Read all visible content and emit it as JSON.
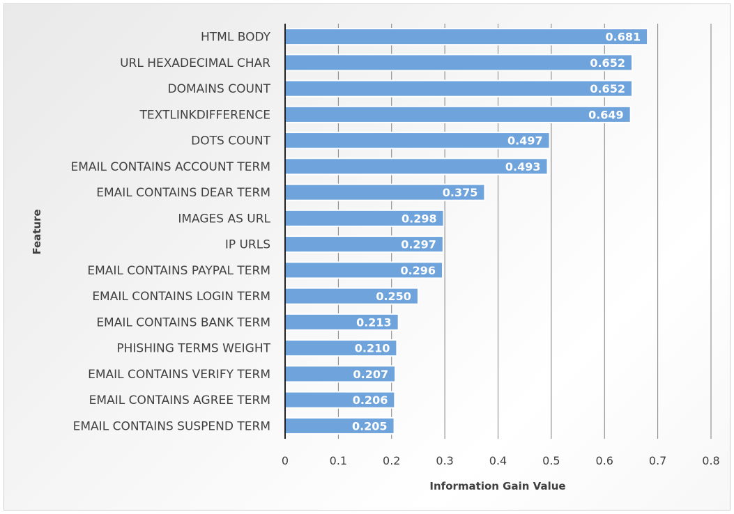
{
  "chart_data": {
    "type": "bar",
    "orientation": "horizontal",
    "categories": [
      "HTML BODY",
      "URL HEXADECIMAL CHAR",
      "DOMAINS COUNT",
      "TEXTLINKDIFFERENCE",
      "DOTS COUNT",
      "EMAIL CONTAINS ACCOUNT TERM",
      "EMAIL CONTAINS DEAR TERM",
      "IMAGES AS URL",
      "IP URLS",
      "EMAIL CONTAINS PAYPAL TERM",
      "EMAIL CONTAINS LOGIN TERM",
      "EMAIL CONTAINS BANK TERM",
      "PHISHING TERMS WEIGHT",
      "EMAIL CONTAINS VERIFY TERM",
      "EMAIL CONTAINS AGREE TERM",
      "EMAIL CONTAINS SUSPEND TERM"
    ],
    "values": [
      0.681,
      0.652,
      0.652,
      0.649,
      0.497,
      0.493,
      0.375,
      0.298,
      0.297,
      0.296,
      0.25,
      0.213,
      0.21,
      0.207,
      0.206,
      0.205
    ],
    "value_labels": [
      "0.681",
      "0.652",
      "0.652",
      "0.649",
      "0.497",
      "0.493",
      "0.375",
      "0.298",
      "0.297",
      "0.296",
      "0.250",
      "0.213",
      "0.210",
      "0.207",
      "0.206",
      "0.205"
    ],
    "xlabel": "Information Gain Value",
    "ylabel": "Feature",
    "xlim": [
      0,
      0.8
    ],
    "xticks": [
      0,
      0.1,
      0.2,
      0.3,
      0.4,
      0.5,
      0.6,
      0.7,
      0.8
    ],
    "xtick_labels": [
      "0",
      "0.1",
      "0.2",
      "0.3",
      "0.4",
      "0.5",
      "0.6",
      "0.7",
      "0.8"
    ],
    "grid": "vertical",
    "bar_color": "#6fa3dc",
    "bar_border_color": "#ffffff",
    "gridline_color": "#7f7f7f"
  }
}
